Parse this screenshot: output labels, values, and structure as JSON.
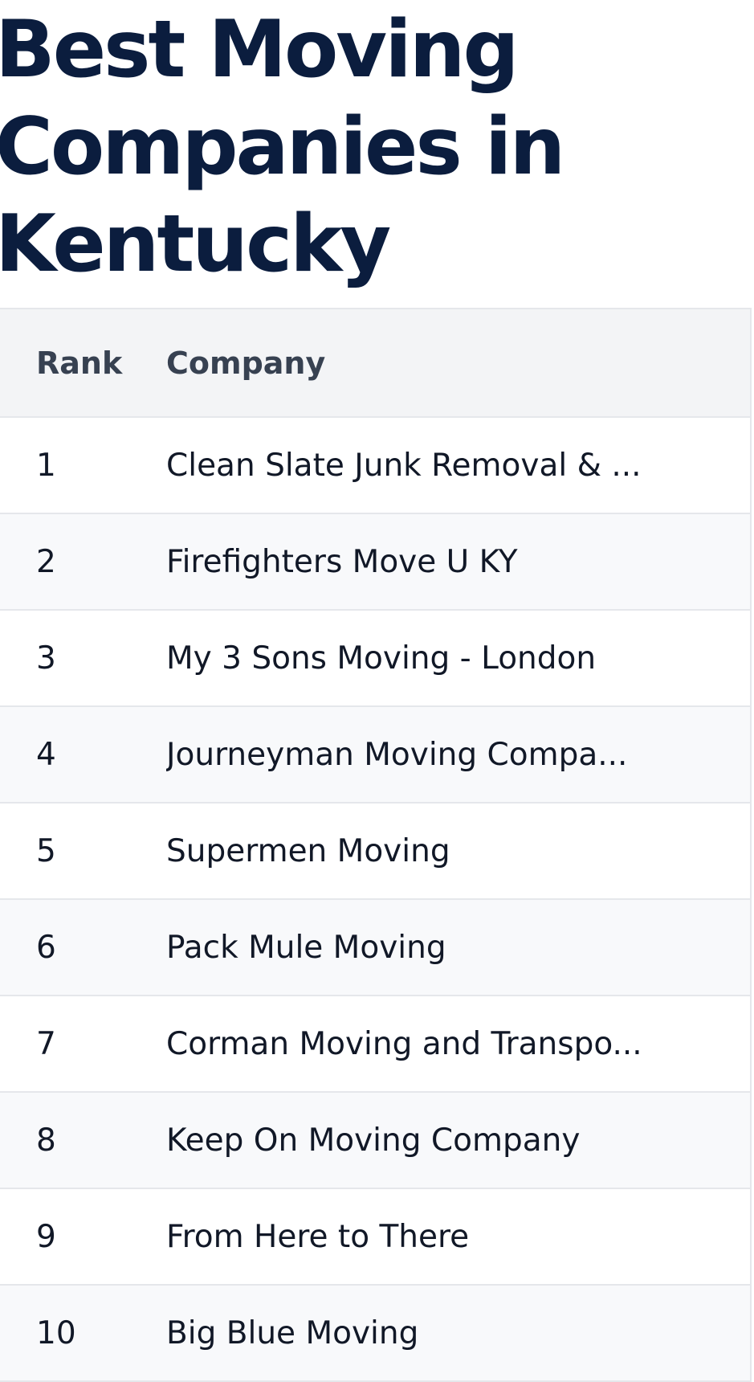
{
  "title": "Best Moving Companies in Kentucky",
  "table": {
    "headers": [
      "Rank",
      "Company"
    ],
    "rows": [
      {
        "rank": "1",
        "company": "Clean Slate Junk Removal & ..."
      },
      {
        "rank": "2",
        "company": "Firefighters Move U KY"
      },
      {
        "rank": "3",
        "company": "My 3 Sons Moving - London"
      },
      {
        "rank": "4",
        "company": "Journeyman Moving Compa..."
      },
      {
        "rank": "5",
        "company": "Supermen Moving"
      },
      {
        "rank": "6",
        "company": "Pack Mule Moving"
      },
      {
        "rank": "7",
        "company": "Corman Moving and Transpo..."
      },
      {
        "rank": "8",
        "company": "Keep On Moving Company"
      },
      {
        "rank": "9",
        "company": "From Here to There"
      },
      {
        "rank": "10",
        "company": "Big Blue Moving"
      }
    ]
  },
  "colors": {
    "title": "#0b1d3e",
    "header_bg": "#f3f4f6",
    "stripe_bg": "#f8f9fb",
    "border": "#e5e7eb"
  }
}
